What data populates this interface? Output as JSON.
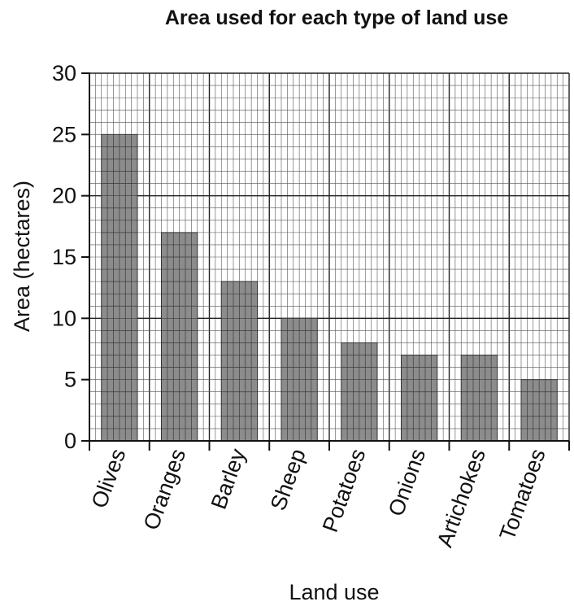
{
  "chart_data": {
    "type": "bar",
    "title": "Area used for each type of land use",
    "xlabel": "Land use",
    "ylabel": "Area (hectares)",
    "categories": [
      "Olives",
      "Oranges",
      "Barley",
      "Sheep",
      "Potatoes",
      "Onions",
      "Artichokes",
      "Tomatoes"
    ],
    "values": [
      25,
      17,
      13,
      10,
      8,
      7,
      7,
      5
    ],
    "ylim": [
      0,
      30
    ],
    "yticks": [
      "0",
      "5",
      "10",
      "15",
      "20",
      "25",
      "30"
    ],
    "grid": true,
    "bar_color": "#8c8c8c"
  }
}
